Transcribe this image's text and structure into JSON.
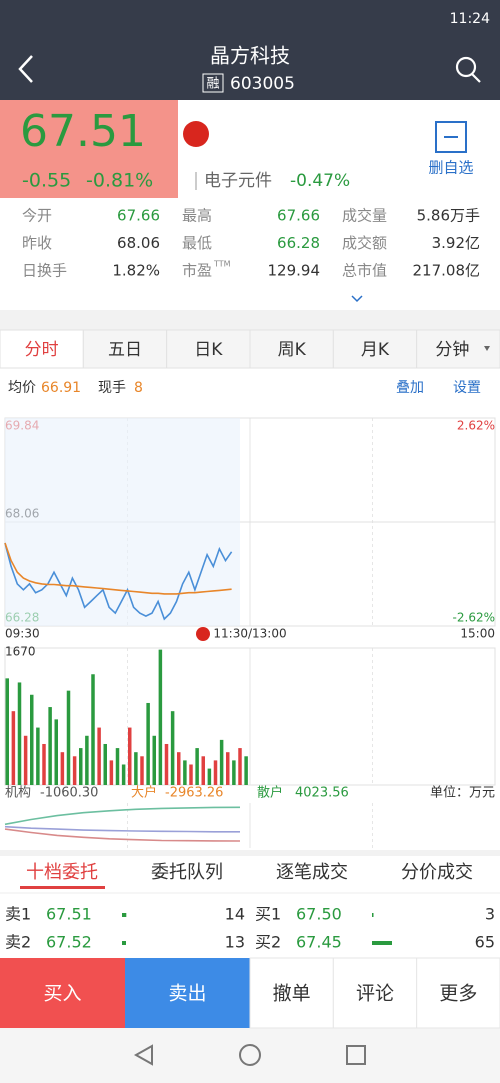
{
  "status": {
    "time": "11:24"
  },
  "header": {
    "title": "晶方科技",
    "badge": "融",
    "code": "603005"
  },
  "quote": {
    "price": "67.51",
    "change": "-0.55",
    "change_pct": "-0.81%",
    "sector": "电子元件",
    "sector_pct": "-0.47%",
    "watch": "删自选"
  },
  "stats": [
    [
      {
        "label": "今开",
        "value": "67.66"
      },
      {
        "label": "最高",
        "value": "67.66"
      },
      {
        "label": "成交量",
        "value": "5.86万手"
      }
    ],
    [
      {
        "label": "昨收",
        "value": "68.06"
      },
      {
        "label": "最低",
        "value": "66.28"
      },
      {
        "label": "成交额",
        "value": "3.92亿"
      }
    ],
    [
      {
        "label": "日换手",
        "value": "1.82%"
      },
      {
        "label": "市盈",
        "sup": "TTM",
        "value": "129.94"
      },
      {
        "label": "总市值",
        "value": "217.08亿"
      }
    ]
  ],
  "tabs": [
    "分时",
    "五日",
    "日K",
    "周K",
    "月K",
    "分钟"
  ],
  "info": {
    "avg_label": "均价",
    "avg": "66.91",
    "hand_label": "现手",
    "hand": "8",
    "links": [
      "叠加",
      "设置"
    ]
  },
  "chart_data": [
    {
      "type": "line",
      "ylim": [
        66.28,
        69.84
      ],
      "yticks": [
        69.84,
        68.06,
        66.28
      ],
      "y2lim": [
        -2.62,
        2.62
      ],
      "y2ticks": [
        {
          "value": 2.62,
          "label": "2.62%"
        },
        {
          "value": -2.62,
          "label": "-2.62%"
        }
      ],
      "xticks": [
        "09:30",
        "11:30/13:00",
        "15:00"
      ],
      "grid": true,
      "series": [
        {
          "color": "#4a8fd8",
          "values": [
            67.7,
            67.3,
            67.0,
            66.9,
            67.0,
            66.85,
            66.9,
            67.0,
            67.2,
            67.0,
            66.8,
            67.1,
            66.9,
            66.6,
            66.7,
            66.8,
            66.9,
            66.6,
            66.5,
            66.7,
            66.9,
            66.6,
            66.5,
            66.45,
            66.5,
            66.7,
            66.4,
            66.5,
            66.7,
            67.0,
            67.2,
            66.9,
            67.2,
            67.5,
            67.3,
            67.6,
            67.4,
            67.55
          ]
        },
        {
          "color": "#e8862a",
          "values": [
            67.7,
            67.4,
            67.2,
            67.1,
            67.05,
            67.02,
            67.0,
            66.99,
            66.99,
            66.98,
            66.97,
            66.97,
            66.96,
            66.95,
            66.94,
            66.93,
            66.92,
            66.91,
            66.9,
            66.89,
            66.88,
            66.87,
            66.86,
            66.85,
            66.84,
            66.84,
            66.83,
            66.83,
            66.83,
            66.84,
            66.85,
            66.85,
            66.86,
            66.87,
            66.88,
            66.89,
            66.9,
            66.91
          ]
        }
      ]
    },
    {
      "type": "bar",
      "ylim": [
        0,
        1670
      ],
      "yticks": [
        1670
      ],
      "values": [
        1300,
        900,
        1250,
        600,
        1100,
        700,
        500,
        950,
        800,
        400,
        1150,
        350,
        450,
        600,
        1350,
        700,
        500,
        300,
        450,
        250,
        700,
        400,
        350,
        1000,
        600,
        1650,
        500,
        900,
        400,
        300,
        250,
        450,
        350,
        200,
        300,
        550,
        400,
        300,
        450,
        350
      ],
      "colors": [
        "#2a9a3f",
        "#e04040",
        "#2a9a3f",
        "#e04040",
        "#2a9a3f",
        "#2a9a3f",
        "#e04040",
        "#2a9a3f",
        "#2a9a3f",
        "#e04040",
        "#2a9a3f",
        "#e04040",
        "#2a9a3f",
        "#2a9a3f",
        "#2a9a3f",
        "#e04040",
        "#2a9a3f",
        "#e04040",
        "#2a9a3f",
        "#2a9a3f",
        "#e04040",
        "#2a9a3f",
        "#e04040",
        "#2a9a3f",
        "#2a9a3f",
        "#2a9a3f",
        "#e04040",
        "#2a9a3f",
        "#e04040",
        "#2a9a3f",
        "#e04040",
        "#2a9a3f",
        "#e04040",
        "#2a9a3f",
        "#e04040",
        "#2a9a3f",
        "#e04040",
        "#2a9a3f",
        "#e04040",
        "#2a9a3f"
      ]
    },
    {
      "type": "line",
      "ylim": [
        -4000,
        4500
      ],
      "series": [
        {
          "color": "#9aa0d8",
          "values": [
            0,
            -300,
            -500,
            -700,
            -800,
            -900,
            -950,
            -1000,
            -1050,
            -1060
          ]
        },
        {
          "color": "#d88a8a",
          "values": [
            -500,
            -1200,
            -1800,
            -2200,
            -2500,
            -2700,
            -2850,
            -2900,
            -2950,
            -2963
          ]
        },
        {
          "color": "#6cbfa0",
          "values": [
            500,
            1500,
            2300,
            2900,
            3300,
            3600,
            3800,
            3900,
            4000,
            4024
          ]
        }
      ]
    }
  ],
  "flow_labels": [
    {
      "label": "机构",
      "value": "-1060.30"
    },
    {
      "label": "大户",
      "value": "-2963.26"
    },
    {
      "label": "散户",
      "value": "4023.56"
    }
  ],
  "flow_unit": "单位：万元",
  "book": {
    "tabs": [
      "十档委托",
      "委托队列",
      "逐笔成交",
      "分价成交"
    ],
    "sell": [
      {
        "label": "卖1",
        "price": "67.51",
        "qty": 14
      },
      {
        "label": "卖2",
        "price": "67.52",
        "qty": 13
      }
    ],
    "buy": [
      {
        "label": "买1",
        "price": "67.50",
        "qty": 3
      },
      {
        "label": "买2",
        "price": "67.45",
        "qty": 65
      }
    ]
  },
  "actions": [
    "买入",
    "卖出",
    "撤单",
    "评论",
    "更多"
  ]
}
